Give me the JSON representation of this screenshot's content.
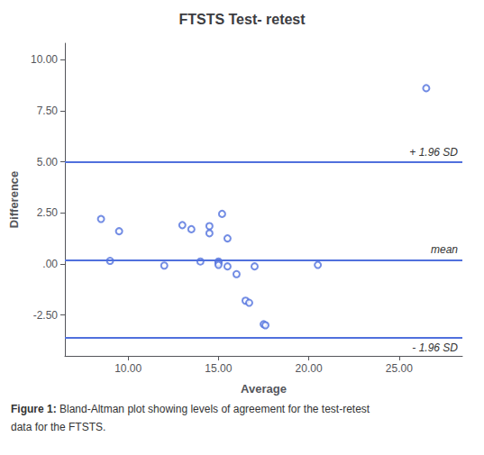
{
  "chart_data": {
    "type": "scatter",
    "title": "FTSTS Test- retest",
    "xlabel": "Average",
    "ylabel": "Difference",
    "x": [
      8.5,
      9.0,
      9.5,
      12.0,
      13.0,
      13.5,
      14.0,
      14.5,
      14.5,
      15.0,
      15.0,
      15.0,
      15.2,
      15.5,
      15.5,
      16.0,
      16.5,
      16.7,
      17.0,
      17.5,
      17.6,
      20.5,
      26.5
    ],
    "values": [
      2.2,
      0.15,
      1.6,
      -0.08,
      1.9,
      1.7,
      0.12,
      1.85,
      1.5,
      0.12,
      0.05,
      -0.05,
      2.45,
      1.25,
      -0.12,
      -0.5,
      -1.8,
      -1.9,
      -0.12,
      -2.95,
      -3.0,
      -0.05,
      8.6
    ],
    "marker": "open circle",
    "xlim": [
      6.5,
      28.5
    ],
    "ylim": [
      -4.5,
      10.8
    ],
    "xticks": [
      {
        "value": 10.0,
        "label": "10.00"
      },
      {
        "value": 15.0,
        "label": "15.00"
      },
      {
        "value": 20.0,
        "label": "20.00"
      },
      {
        "value": 25.0,
        "label": "25.00"
      }
    ],
    "yticks": [
      {
        "value": -2.5,
        "label": "-2.50"
      },
      {
        "value": 0.0,
        "label": ".00"
      },
      {
        "value": 2.5,
        "label": "2.50"
      },
      {
        "value": 5.0,
        "label": "5.00"
      },
      {
        "value": 7.5,
        "label": "7.50"
      },
      {
        "value": 10.0,
        "label": "10.00"
      }
    ],
    "grid": false,
    "reference_lines": [
      {
        "value": 5.0,
        "label": "+ 1.96 SD"
      },
      {
        "value": 0.2,
        "label": "mean"
      },
      {
        "value": -3.6,
        "label": "- 1.96 SD"
      }
    ],
    "caption": [
      "Figure 1:",
      "Bland-Altman plot showing levels of agreement for the test-retest",
      "data for the FTSTS."
    ]
  }
}
